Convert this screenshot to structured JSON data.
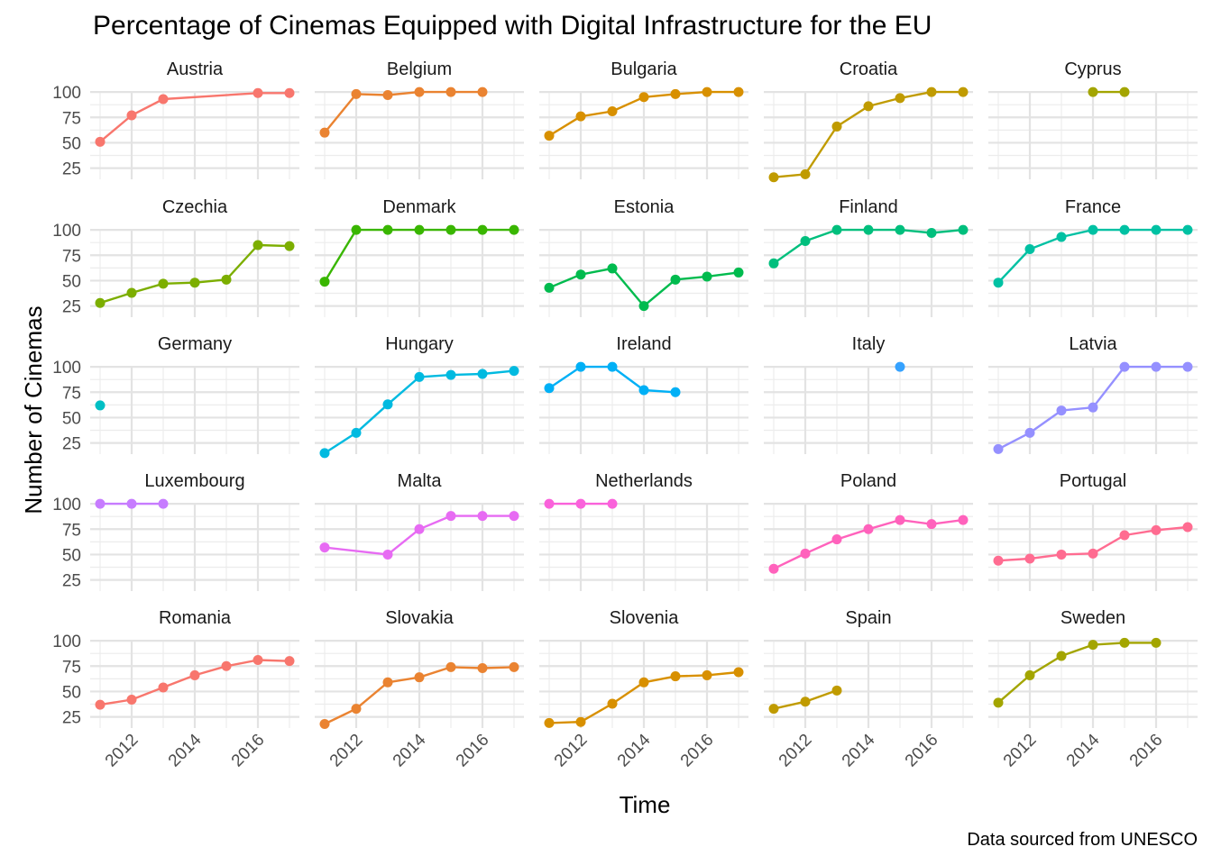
{
  "chart_data": {
    "type": "line",
    "facet": "country",
    "title": "Percentage of Cinemas Equipped with Digital Infrastructure for the EU",
    "xlabel": "Time",
    "ylabel": "Number of Cinemas",
    "caption": "Data sourced from UNESCO",
    "x_ticks": [
      "2012",
      "2014",
      "2016"
    ],
    "y_ticks": [
      "25",
      "50",
      "75",
      "100"
    ],
    "xlim": [
      2011,
      2017
    ],
    "ylim": [
      14,
      101
    ],
    "grid": true,
    "legend": "none",
    "series": [
      {
        "name": "Austria",
        "color": "#F8766D",
        "x": [
          2011,
          2012,
          2013,
          2016,
          2017
        ],
        "y": [
          51,
          77,
          93,
          99,
          99
        ]
      },
      {
        "name": "Belgium",
        "color": "#EA8331",
        "x": [
          2011,
          2012,
          2013,
          2014,
          2015,
          2016
        ],
        "y": [
          60,
          98,
          97,
          100,
          100,
          100
        ]
      },
      {
        "name": "Bulgaria",
        "color": "#D89000",
        "x": [
          2011,
          2012,
          2013,
          2014,
          2015,
          2016,
          2017
        ],
        "y": [
          57,
          76,
          81,
          95,
          98,
          100,
          100
        ]
      },
      {
        "name": "Croatia",
        "color": "#C09B00",
        "x": [
          2011,
          2012,
          2013,
          2014,
          2015,
          2016,
          2017
        ],
        "y": [
          16,
          19,
          66,
          86,
          94,
          100,
          100
        ]
      },
      {
        "name": "Cyprus",
        "color": "#A3A500",
        "x": [
          2014,
          2015
        ],
        "y": [
          100,
          100
        ]
      },
      {
        "name": "Czechia",
        "color": "#7CAE00",
        "x": [
          2011,
          2012,
          2013,
          2014,
          2015,
          2016,
          2017
        ],
        "y": [
          28,
          38,
          47,
          48,
          51,
          85,
          84
        ]
      },
      {
        "name": "Denmark",
        "color": "#39B600",
        "x": [
          2011,
          2012,
          2013,
          2014,
          2015,
          2016,
          2017
        ],
        "y": [
          49,
          100,
          100,
          100,
          100,
          100,
          100
        ]
      },
      {
        "name": "Estonia",
        "color": "#00BB4E",
        "x": [
          2011,
          2012,
          2013,
          2014,
          2015,
          2016,
          2017
        ],
        "y": [
          43,
          56,
          62,
          25,
          51,
          54,
          58
        ]
      },
      {
        "name": "Finland",
        "color": "#00BF7D",
        "x": [
          2011,
          2012,
          2013,
          2014,
          2015,
          2016,
          2017
        ],
        "y": [
          67,
          89,
          100,
          100,
          100,
          97,
          100
        ]
      },
      {
        "name": "France",
        "color": "#00C1A3",
        "x": [
          2011,
          2012,
          2013,
          2014,
          2015,
          2016,
          2017
        ],
        "y": [
          48,
          81,
          93,
          100,
          100,
          100,
          100
        ]
      },
      {
        "name": "Germany",
        "color": "#00BFC4",
        "x": [
          2011
        ],
        "y": [
          62
        ]
      },
      {
        "name": "Hungary",
        "color": "#00BAE0",
        "x": [
          2011,
          2012,
          2013,
          2014,
          2015,
          2016,
          2017
        ],
        "y": [
          15,
          35,
          63,
          90,
          92,
          93,
          96
        ]
      },
      {
        "name": "Ireland",
        "color": "#00B0F6",
        "x": [
          2011,
          2012,
          2013,
          2014,
          2015
        ],
        "y": [
          79,
          100,
          100,
          77,
          75
        ]
      },
      {
        "name": "Italy",
        "color": "#35A2FF",
        "x": [
          2015
        ],
        "y": [
          100
        ]
      },
      {
        "name": "Latvia",
        "color": "#9590FF",
        "x": [
          2011,
          2012,
          2013,
          2014,
          2015,
          2016,
          2017
        ],
        "y": [
          19,
          35,
          57,
          60,
          100,
          100,
          100
        ]
      },
      {
        "name": "Luxembourg",
        "color": "#C77CFF",
        "x": [
          2011,
          2012,
          2013
        ],
        "y": [
          100,
          100,
          100
        ]
      },
      {
        "name": "Malta",
        "color": "#E76BF3",
        "x": [
          2011,
          2013,
          2014,
          2015,
          2016,
          2017
        ],
        "y": [
          57,
          50,
          75,
          88,
          88,
          88
        ]
      },
      {
        "name": "Netherlands",
        "color": "#FA62DB",
        "x": [
          2011,
          2012,
          2013
        ],
        "y": [
          100,
          100,
          100
        ]
      },
      {
        "name": "Poland",
        "color": "#FF62BC",
        "x": [
          2011,
          2012,
          2013,
          2014,
          2015,
          2016,
          2017
        ],
        "y": [
          36,
          51,
          65,
          75,
          84,
          80,
          84
        ]
      },
      {
        "name": "Portugal",
        "color": "#FF6C91",
        "x": [
          2011,
          2012,
          2013,
          2014,
          2015,
          2016,
          2017
        ],
        "y": [
          44,
          46,
          50,
          51,
          69,
          74,
          77
        ]
      },
      {
        "name": "Romania",
        "color": "#F8766D",
        "x": [
          2011,
          2012,
          2013,
          2014,
          2015,
          2016,
          2017
        ],
        "y": [
          37,
          42,
          54,
          66,
          75,
          81,
          80
        ]
      },
      {
        "name": "Slovakia",
        "color": "#EA8331",
        "x": [
          2011,
          2012,
          2013,
          2014,
          2015,
          2016,
          2017
        ],
        "y": [
          18,
          33,
          59,
          64,
          74,
          73,
          74
        ]
      },
      {
        "name": "Slovenia",
        "color": "#D89000",
        "x": [
          2011,
          2012,
          2013,
          2014,
          2015,
          2016,
          2017
        ],
        "y": [
          19,
          20,
          38,
          59,
          65,
          66,
          69
        ]
      },
      {
        "name": "Spain",
        "color": "#C09B00",
        "x": [
          2011,
          2012,
          2013
        ],
        "y": [
          33,
          40,
          51
        ]
      },
      {
        "name": "Sweden",
        "color": "#A3A500",
        "x": [
          2011,
          2012,
          2013,
          2014,
          2015,
          2016
        ],
        "y": [
          39,
          66,
          85,
          96,
          98,
          98
        ]
      }
    ]
  }
}
